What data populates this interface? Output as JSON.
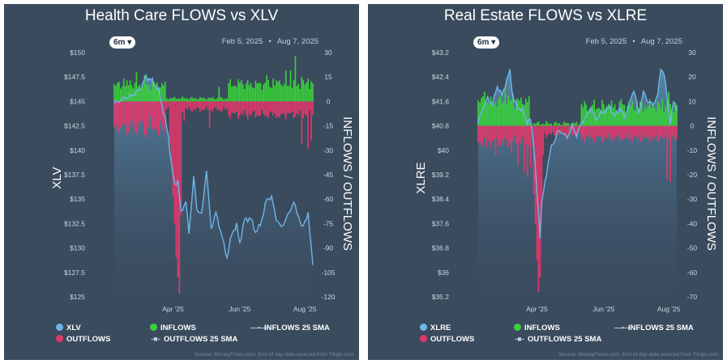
{
  "colors": {
    "panel_bg": "#3a4b5e",
    "price_line": "#6eb6e8",
    "inflow": "#39d03a",
    "outflow": "#e0386b",
    "axis_text": "#ccd5de"
  },
  "chart_data": [
    {
      "type": "bar",
      "title": "Health Care FLOWS vs XLV",
      "range_button": "6m",
      "date_start": "Feb 5, 2025",
      "date_end": "Aug 7, 2025",
      "ylabel_left": "XLV",
      "ylabel_right": "INFLOWS / OUTFLOWS",
      "y_left_ticks": [
        "$150",
        "$147.5",
        "$145",
        "$142.5",
        "$140",
        "$137.5",
        "$135",
        "$132.5",
        "$130",
        "$127.5",
        "$125"
      ],
      "y_left_range": [
        125,
        150
      ],
      "y_right_ticks": [
        "30",
        "15",
        "0",
        "-15",
        "-30",
        "-45",
        "-60",
        "-75",
        "-90",
        "-105",
        "-120"
      ],
      "y_right_range": [
        -120,
        30
      ],
      "x_ticks": [
        {
          "label": "Apr '25",
          "index": 37
        },
        {
          "label": "Jun '25",
          "index": 79
        },
        {
          "label": "Aug '25",
          "index": 120
        }
      ],
      "n_days": 126,
      "price_path": [
        [
          0,
          144.8
        ],
        [
          6,
          145.3
        ],
        [
          11,
          145.6
        ],
        [
          16,
          146.2
        ],
        [
          20,
          147.5
        ],
        [
          24,
          147.1
        ],
        [
          28,
          146.1
        ],
        [
          32,
          143.2
        ],
        [
          34,
          141.5
        ],
        [
          36,
          138.5
        ],
        [
          38,
          136.5
        ],
        [
          40,
          136.9
        ],
        [
          42,
          133.6
        ],
        [
          45,
          134.8
        ],
        [
          47,
          131.5
        ],
        [
          50,
          137.2
        ],
        [
          52,
          134.0
        ],
        [
          55,
          133.4
        ],
        [
          58,
          138.0
        ],
        [
          61,
          132.0
        ],
        [
          64,
          133.6
        ],
        [
          67,
          131.7
        ],
        [
          71,
          129.0
        ],
        [
          74,
          131.5
        ],
        [
          77,
          132.3
        ],
        [
          79,
          130.5
        ],
        [
          82,
          132.9
        ],
        [
          86,
          133.0
        ],
        [
          89,
          131.6
        ],
        [
          92,
          132.4
        ],
        [
          96,
          135.0
        ],
        [
          99,
          135.2
        ],
        [
          102,
          133.0
        ],
        [
          105,
          132.1
        ],
        [
          108,
          132.9
        ],
        [
          111,
          134.0
        ],
        [
          113,
          134.6
        ],
        [
          116,
          133.3
        ],
        [
          118,
          132.0
        ],
        [
          120,
          132.8
        ],
        [
          122,
          133.4
        ],
        [
          124,
          130.1
        ],
        [
          125,
          128.5
        ]
      ],
      "inflow_segments": [
        [
          0,
          33,
          7,
          6
        ],
        [
          33,
          72,
          1,
          2
        ],
        [
          72,
          126,
          7,
          7
        ]
      ],
      "inflow_spikes": [
        [
          6,
          14
        ],
        [
          10,
          13
        ],
        [
          14,
          18
        ],
        [
          19,
          16
        ],
        [
          24,
          12
        ],
        [
          25,
          12
        ],
        [
          66,
          9
        ],
        [
          80,
          13
        ],
        [
          96,
          16
        ],
        [
          100,
          14
        ],
        [
          104,
          13
        ],
        [
          108,
          19
        ],
        [
          111,
          19
        ],
        [
          114,
          28
        ],
        [
          118,
          15
        ],
        [
          122,
          14
        ]
      ],
      "outflow_segments": [
        [
          0,
          33,
          9,
          12
        ],
        [
          33,
          72,
          3,
          4
        ],
        [
          72,
          126,
          5,
          6
        ]
      ],
      "outflow_spikes": [
        [
          4,
          -16
        ],
        [
          9,
          -19
        ],
        [
          14,
          -20
        ],
        [
          20,
          -22
        ],
        [
          28,
          -21
        ],
        [
          35,
          -27
        ],
        [
          36,
          -38
        ],
        [
          37,
          -58
        ],
        [
          38,
          -75
        ],
        [
          39,
          -96
        ],
        [
          40,
          -108
        ],
        [
          41,
          -118
        ],
        [
          42,
          -70
        ],
        [
          44,
          -12
        ],
        [
          60,
          -16
        ],
        [
          84,
          -11
        ],
        [
          96,
          -9
        ],
        [
          104,
          -10
        ],
        [
          118,
          -26
        ],
        [
          122,
          -29
        ],
        [
          124,
          -24
        ]
      ]
    },
    {
      "type": "bar",
      "title": "Real Estate FLOWS vs XLRE",
      "range_button": "6m",
      "date_start": "Feb 5, 2025",
      "date_end": "Aug 7, 2025",
      "ylabel_left": "XLRE",
      "ylabel_right": "INFLOWS / OUTFLOWS",
      "y_left_ticks": [
        "$43.2",
        "$42.4",
        "$41.6",
        "$40.8",
        "$40",
        "$39.2",
        "$38.4",
        "$37.6",
        "$36.8",
        "$36",
        "$35.2"
      ],
      "y_left_range": [
        35.2,
        43.2
      ],
      "y_right_ticks": [
        "30",
        "20",
        "10",
        "0",
        "-10",
        "-20",
        "-30",
        "-40",
        "-50",
        "-60",
        "-70"
      ],
      "y_right_range": [
        -70,
        30
      ],
      "x_ticks": [
        {
          "label": "Apr '25",
          "index": 37
        },
        {
          "label": "Jun '25",
          "index": 79
        },
        {
          "label": "Aug '25",
          "index": 120
        }
      ],
      "n_days": 126,
      "price_path": [
        [
          0,
          40.9
        ],
        [
          3,
          41.4
        ],
        [
          6,
          41.7
        ],
        [
          9,
          41.5
        ],
        [
          12,
          42.1
        ],
        [
          15,
          41.8
        ],
        [
          18,
          42.3
        ],
        [
          20,
          42.6
        ],
        [
          22,
          41.7
        ],
        [
          25,
          41.4
        ],
        [
          28,
          41.3
        ],
        [
          31,
          40.9
        ],
        [
          33,
          41.0
        ],
        [
          35,
          40.2
        ],
        [
          37,
          38.6
        ],
        [
          39,
          37.2
        ],
        [
          40,
          38.3
        ],
        [
          42,
          38.9
        ],
        [
          44,
          39.6
        ],
        [
          46,
          40.1
        ],
        [
          48,
          40.3
        ],
        [
          50,
          40.6
        ],
        [
          53,
          40.6
        ],
        [
          56,
          40.4
        ],
        [
          59,
          40.8
        ],
        [
          62,
          40.5
        ],
        [
          65,
          40.9
        ],
        [
          68,
          41.1
        ],
        [
          71,
          41.4
        ],
        [
          74,
          41.0
        ],
        [
          77,
          41.2
        ],
        [
          80,
          41.3
        ],
        [
          83,
          41.4
        ],
        [
          86,
          41.1
        ],
        [
          89,
          41.4
        ],
        [
          92,
          41.1
        ],
        [
          95,
          41.5
        ],
        [
          98,
          42.0
        ],
        [
          101,
          41.2
        ],
        [
          104,
          41.9
        ],
        [
          107,
          41.6
        ],
        [
          110,
          41.5
        ],
        [
          113,
          41.8
        ],
        [
          115,
          42.7
        ],
        [
          117,
          42.5
        ],
        [
          119,
          41.7
        ],
        [
          121,
          40.9
        ],
        [
          123,
          41.6
        ],
        [
          125,
          41.4
        ]
      ],
      "inflow_segments": [
        [
          0,
          33,
          7,
          6
        ],
        [
          33,
          65,
          0,
          2
        ],
        [
          65,
          126,
          5,
          6
        ]
      ],
      "inflow_spikes": [
        [
          4,
          14
        ],
        [
          8,
          12
        ],
        [
          13,
          11
        ],
        [
          17,
          16
        ],
        [
          22,
          13
        ],
        [
          28,
          9
        ],
        [
          70,
          7
        ],
        [
          82,
          9
        ],
        [
          90,
          11
        ],
        [
          100,
          10
        ],
        [
          110,
          9
        ],
        [
          116,
          11
        ],
        [
          120,
          14
        ]
      ],
      "outflow_segments": [
        [
          0,
          33,
          4,
          5
        ],
        [
          33,
          65,
          2,
          3
        ],
        [
          65,
          126,
          3,
          4
        ]
      ],
      "outflow_spikes": [
        [
          5,
          -9
        ],
        [
          11,
          -12
        ],
        [
          16,
          -8
        ],
        [
          21,
          -11
        ],
        [
          25,
          -16
        ],
        [
          29,
          -19
        ],
        [
          31,
          -21
        ],
        [
          33,
          -17
        ],
        [
          35,
          -28
        ],
        [
          36,
          -40
        ],
        [
          37,
          -55
        ],
        [
          38,
          -68
        ],
        [
          39,
          -62
        ],
        [
          40,
          -32
        ],
        [
          41,
          -12
        ],
        [
          56,
          -6
        ],
        [
          68,
          -4
        ],
        [
          110,
          -6
        ],
        [
          119,
          -22
        ],
        [
          121,
          -23
        ]
      ]
    }
  ],
  "legends": [
    {
      "price": "XLV",
      "inflows": "INFLOWS",
      "inflows_sma": "INFLOWS 25 SMA",
      "outflows": "OUTFLOWS",
      "outflows_sma": "OUTFLOWS 25 SMA"
    },
    {
      "price": "XLRE",
      "inflows": "INFLOWS",
      "inflows_sma": "INFLOWS 25 SMA",
      "outflows": "OUTFLOWS",
      "outflows_sma": "OUTFLOWS 25 SMA"
    }
  ],
  "source_text": "Source: MoneyFlows.com. End of day data sourced from Tiingo.com"
}
